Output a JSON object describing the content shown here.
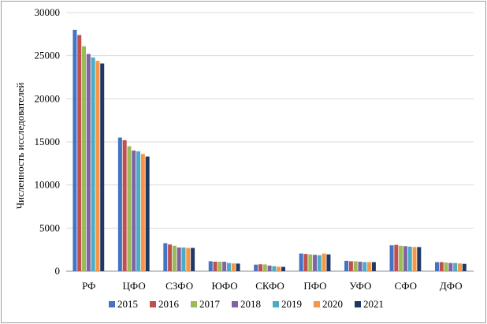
{
  "chart_data": {
    "type": "bar",
    "ylabel": "Численность исследователей",
    "ylim": [
      0,
      30000
    ],
    "yticks": [
      0,
      5000,
      10000,
      15000,
      20000,
      25000,
      30000
    ],
    "grid": "horizontal",
    "legend_position": "bottom",
    "categories": [
      "РФ",
      "ЦФО",
      "СЗФО",
      "ЮФО",
      "СКФО",
      "ПФО",
      "УФО",
      "СФО",
      "ДФО"
    ],
    "series": [
      {
        "name": "2015",
        "color": "#4472C4",
        "values": [
          28000,
          15500,
          3250,
          1150,
          760,
          2050,
          1200,
          3000,
          1050
        ]
      },
      {
        "name": "2016",
        "color": "#C0504D",
        "values": [
          27400,
          15200,
          3100,
          1100,
          800,
          2000,
          1150,
          3050,
          1050
        ]
      },
      {
        "name": "2017",
        "color": "#9BBB59",
        "values": [
          26100,
          14500,
          2950,
          1100,
          780,
          1950,
          1150,
          2950,
          1000
        ]
      },
      {
        "name": "2018",
        "color": "#8064A2",
        "values": [
          25200,
          14000,
          2750,
          1100,
          650,
          1900,
          1100,
          2900,
          950
        ]
      },
      {
        "name": "2019",
        "color": "#4BACC6",
        "values": [
          24800,
          13900,
          2750,
          950,
          580,
          1850,
          1050,
          2850,
          950
        ]
      },
      {
        "name": "2020",
        "color": "#F79646",
        "values": [
          24400,
          13600,
          2700,
          900,
          520,
          2050,
          1050,
          2800,
          900
        ]
      },
      {
        "name": "2021",
        "color": "#1F3864",
        "values": [
          24100,
          13300,
          2700,
          880,
          500,
          1950,
          1050,
          2800,
          850
        ]
      }
    ]
  }
}
